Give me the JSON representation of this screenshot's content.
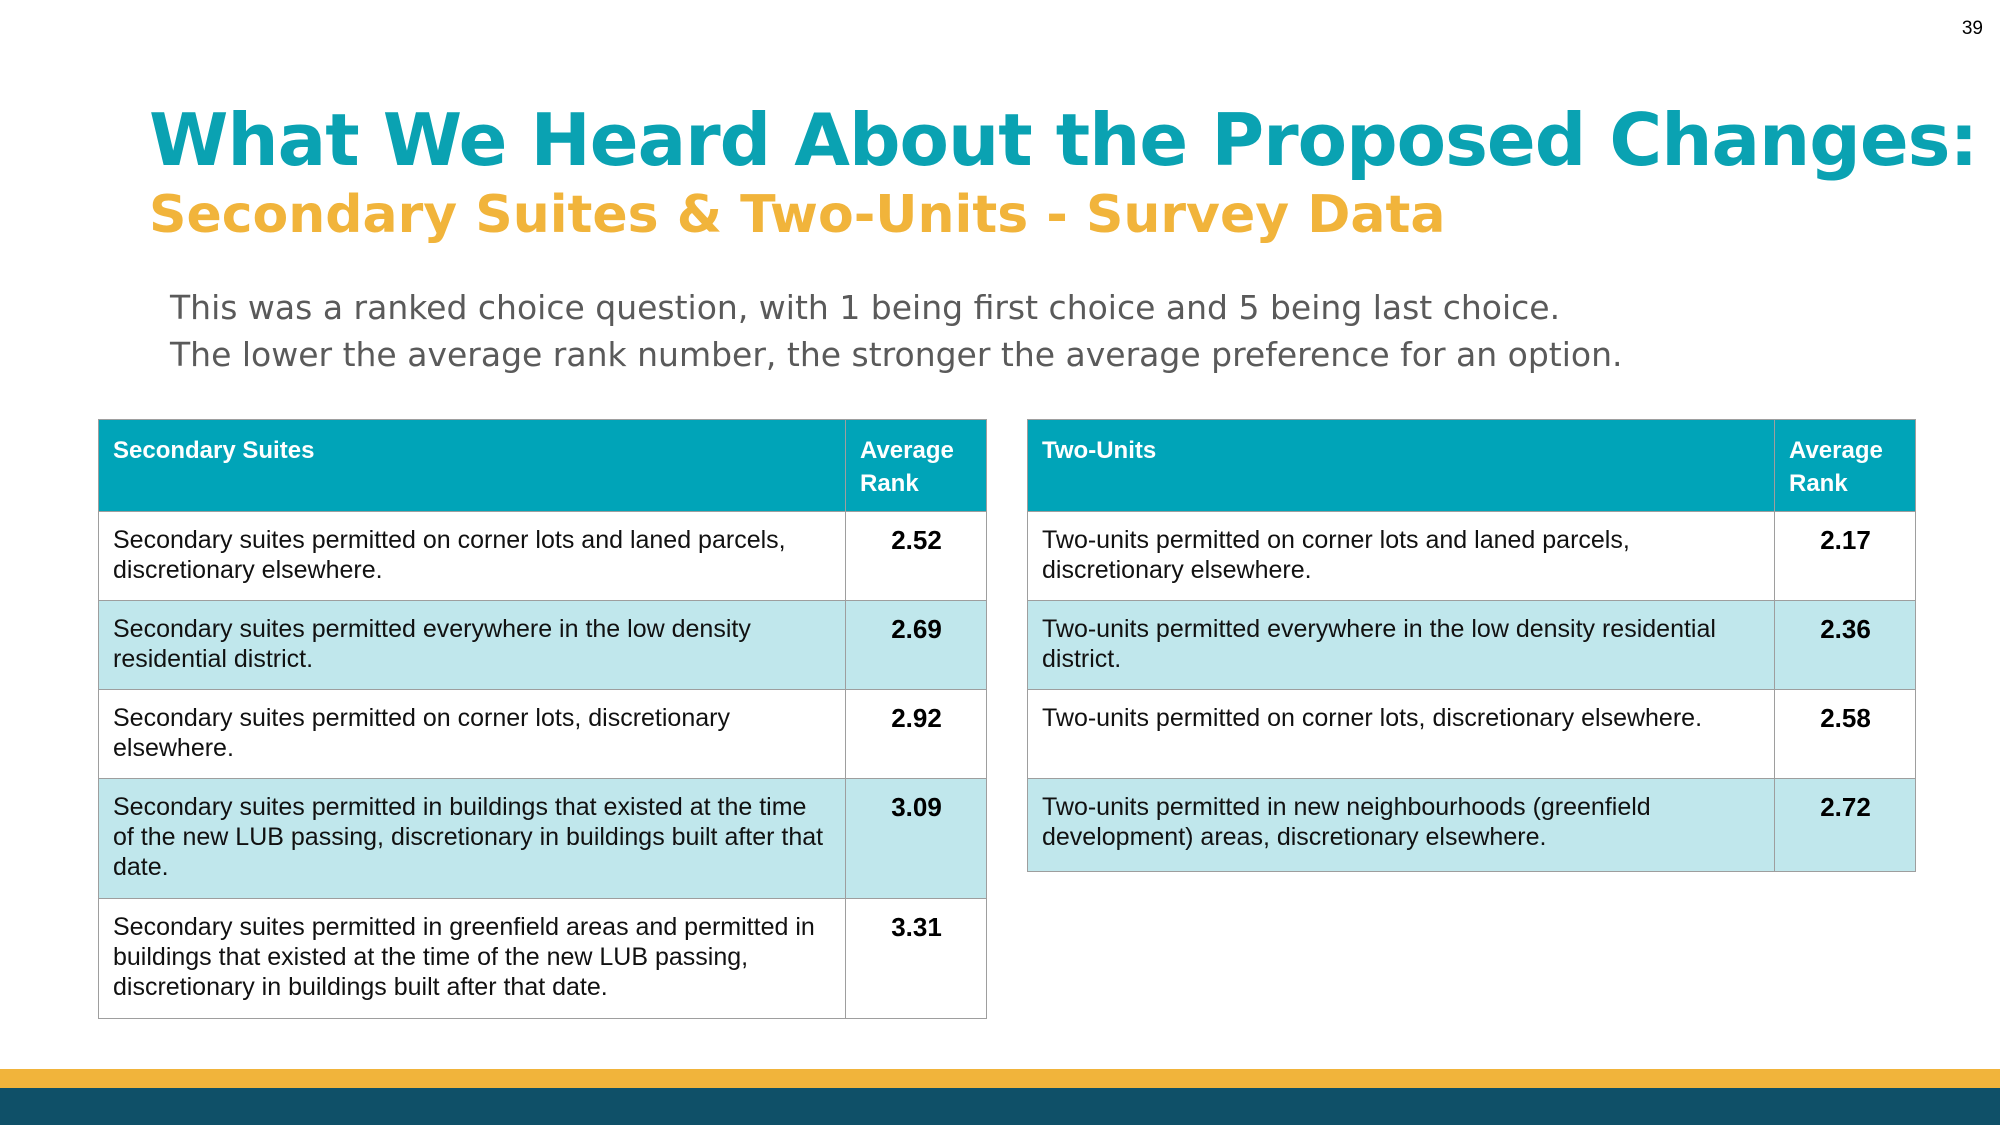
{
  "page_number": "39",
  "title": "What We Heard About the Proposed Changes:",
  "subtitle": "Secondary Suites & Two-Units - Survey Data",
  "note": [
    "This was a ranked choice question, with 1 being first choice and 5 being last choice.",
    "The lower the average rank number, the stronger the average preference for an option."
  ],
  "secondary_suites": {
    "header": {
      "option": "Secondary Suites",
      "rank": "Average Rank"
    },
    "rows": [
      {
        "option": "Secondary suites permitted on corner lots and laned parcels, discretionary elsewhere.",
        "rank": "2.52"
      },
      {
        "option": "Secondary suites permitted everywhere in the low density residential district.",
        "rank": "2.69"
      },
      {
        "option": "Secondary suites permitted on corner lots, discretionary elsewhere.",
        "rank": "2.92"
      },
      {
        "option": "Secondary suites permitted in buildings that existed at the time of the new LUB passing, discretionary in buildings built after that date.",
        "rank": "3.09"
      },
      {
        "option": "Secondary suites permitted in greenfield areas and permitted in buildings that existed at the time of the new LUB passing, discretionary in buildings built after that date.",
        "rank": "3.31"
      }
    ]
  },
  "two_units": {
    "header": {
      "option": "Two-Units",
      "rank": "Average Rank"
    },
    "rows": [
      {
        "option": "Two-units permitted on corner lots and laned parcels, discretionary elsewhere.",
        "rank": "2.17"
      },
      {
        "option": "Two-units permitted everywhere in the low density residential district.",
        "rank": "2.36"
      },
      {
        "option": "Two-units permitted on corner lots, discretionary elsewhere.",
        "rank": "2.58"
      },
      {
        "option": "Two-units permitted in new neighbourhoods (greenfield development) areas, discretionary elsewhere.",
        "rank": "2.72"
      }
    ]
  },
  "colors": {
    "title": "#0aa2b2",
    "subtitle": "#f1b43b",
    "table_header": "#00a4b8",
    "row_shade": "#c0e7ec",
    "band_gold": "#f1b43b",
    "band_teal": "#0f5068"
  }
}
